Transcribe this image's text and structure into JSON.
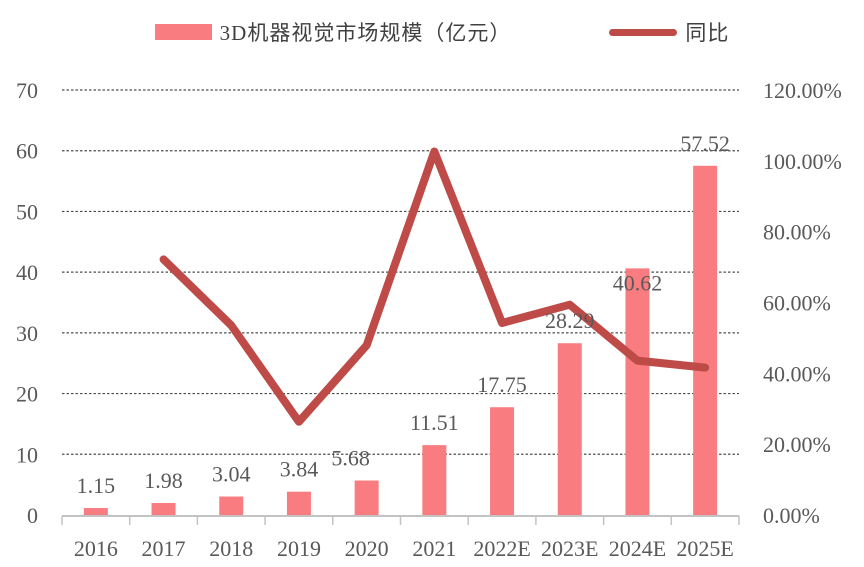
{
  "legend": [
    {
      "label": "3D机器视觉市场规模（亿元）",
      "swatch": "bar",
      "color": "#F97D80"
    },
    {
      "label": "同比",
      "swatch": "line",
      "color": "#BE4B48"
    }
  ],
  "chart_data": {
    "type": "bar",
    "subtype": "combo bar + line, dual axis",
    "title": "",
    "categories": [
      "2016",
      "2017",
      "2018",
      "2019",
      "2020",
      "2021",
      "2022E",
      "2023E",
      "2024E",
      "2025E"
    ],
    "series": [
      {
        "name": "3D机器视觉市场规模（亿元）",
        "kind": "bar",
        "axis": "left",
        "color": "#F97D80",
        "values": [
          1.15,
          1.98,
          3.04,
          3.84,
          5.68,
          11.51,
          17.75,
          28.29,
          40.62,
          57.52
        ],
        "data_labels": [
          "1.15",
          "1.98",
          "3.04",
          "3.84",
          "5.68",
          "11.51",
          "17.75",
          "28.29",
          "40.62",
          "57.52"
        ]
      },
      {
        "name": "同比",
        "kind": "line",
        "axis": "right",
        "color": "#BE4B48",
        "values_percent": [
          null,
          72.17,
          53.54,
          26.32,
          47.92,
          102.64,
          54.21,
          59.38,
          43.58,
          41.61
        ]
      }
    ],
    "left_axis": {
      "min": 0,
      "max": 70,
      "step": 10,
      "tick_labels": [
        "0",
        "10",
        "20",
        "30",
        "40",
        "50",
        "60",
        "70"
      ]
    },
    "right_axis": {
      "min_label": "0.00%",
      "max_label": "120.00%",
      "step_percent": 20,
      "tick_labels": [
        "0.00%",
        "20.00%",
        "40.00%",
        "60.00%",
        "80.00%",
        "100.00%",
        "120.00%"
      ]
    },
    "grid": {
      "horizontal": true,
      "style": "dashed"
    },
    "legend_position": "top",
    "text_color": "#595959",
    "axis_color": "#C3C3C3",
    "grid_color": "#4D4D4D"
  }
}
